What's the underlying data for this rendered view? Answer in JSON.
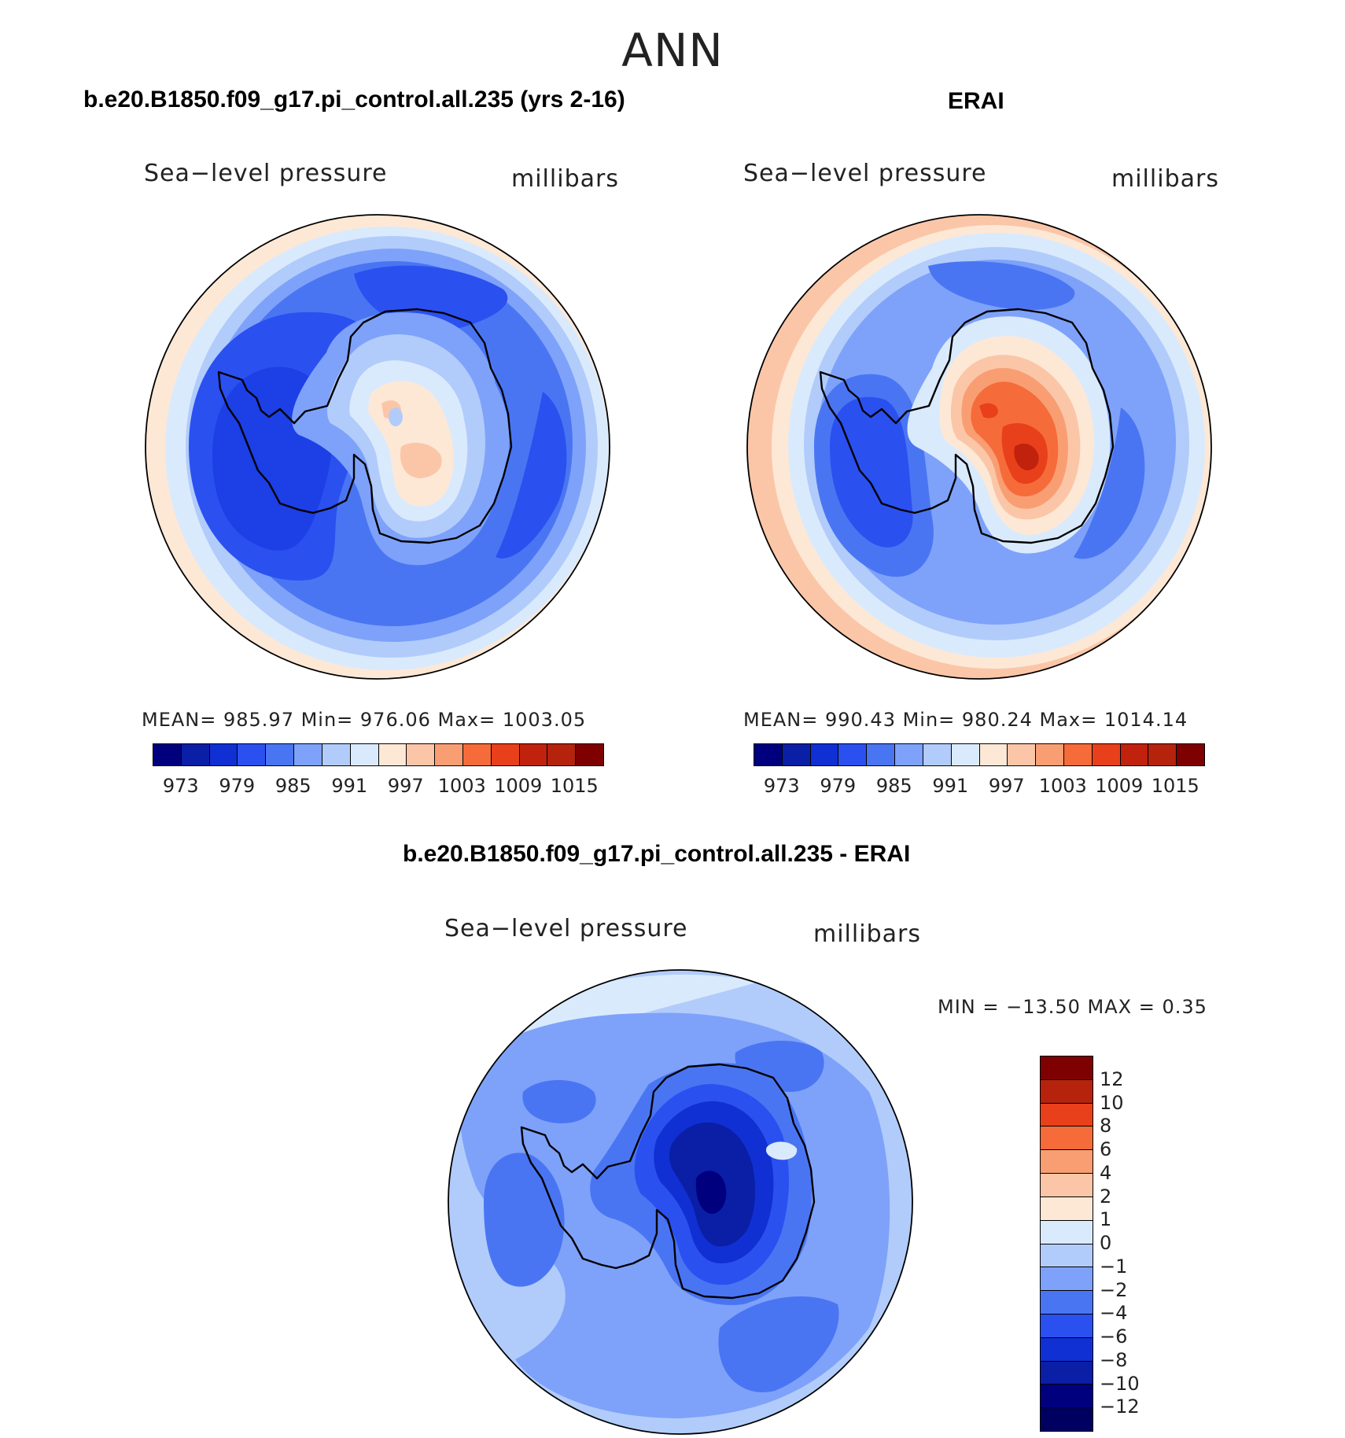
{
  "season": "ANN",
  "panels": {
    "model": {
      "title": "b.e20.B1850.f09_g17.pi_control.all.235 (yrs 2-16)",
      "variable": "Sea−level pressure",
      "units": "millibars",
      "stats": "MEAN=  985.97    Min=  976.06    Max=  1003.05"
    },
    "obs": {
      "title": "ERAI",
      "variable": "Sea−level pressure",
      "units": "millibars",
      "stats": "MEAN=  990.43    Min=  980.24    Max=  1014.14"
    },
    "diff": {
      "title": "b.e20.B1850.f09_g17.pi_control.all.235 - ERAI",
      "variable": "Sea−level pressure",
      "units": "millibars",
      "stats": "MIN  =  −13.50  MAX  =      0.35"
    }
  },
  "colorbar_h": {
    "ticks": [
      "973",
      "979",
      "985",
      "991",
      "997",
      "1003",
      "1009",
      "1015"
    ],
    "colors": [
      "#00007f",
      "#0a1fa5",
      "#1030d3",
      "#2b50f0",
      "#4a75f2",
      "#7ea2fa",
      "#b1ccfb",
      "#daeafd",
      "#fde8d6",
      "#fbc6a8",
      "#f99e73",
      "#f66b3a",
      "#e8401b",
      "#c0220d",
      "#b5230d",
      "#7f0000"
    ]
  },
  "colorbar_v": {
    "labels": [
      "12",
      "10",
      "8",
      "6",
      "4",
      "2",
      "1",
      "0",
      "−1",
      "−2",
      "−4",
      "−6",
      "−8",
      "−10",
      "−12"
    ],
    "colors": [
      "#7f0000",
      "#b5230d",
      "#e8401b",
      "#f66b3a",
      "#f99e73",
      "#fbc6a8",
      "#fde8d6",
      "#daeafd",
      "#b1ccfb",
      "#7ea2fa",
      "#4a75f2",
      "#2b50f0",
      "#1030d3",
      "#0a1fa5",
      "#00007f",
      "#000060"
    ]
  },
  "chart_data": [
    {
      "type": "heatmap",
      "title": "b.e20.B1850.f09_g17.pi_control.all.235 (yrs 2-16)",
      "variable": "Sea-level pressure",
      "units": "millibars",
      "projection": "south polar stereographic",
      "mean": 985.97,
      "min": 976.06,
      "max": 1003.05,
      "contour_levels": [
        970,
        973,
        976,
        979,
        982,
        985,
        988,
        991,
        994,
        997,
        1000,
        1003,
        1006,
        1009,
        1012,
        1015,
        1018
      ]
    },
    {
      "type": "heatmap",
      "title": "ERAI",
      "variable": "Sea-level pressure",
      "units": "millibars",
      "projection": "south polar stereographic",
      "mean": 990.43,
      "min": 980.24,
      "max": 1014.14,
      "contour_levels": [
        970,
        973,
        976,
        979,
        982,
        985,
        988,
        991,
        994,
        997,
        1000,
        1003,
        1006,
        1009,
        1012,
        1015,
        1018
      ]
    },
    {
      "type": "heatmap",
      "title": "b.e20.B1850.f09_g17.pi_control.all.235 - ERAI",
      "variable": "Sea-level pressure",
      "units": "millibars",
      "projection": "south polar stereographic",
      "min": -13.5,
      "max": 0.35,
      "contour_levels": [
        -12,
        -10,
        -8,
        -6,
        -4,
        -2,
        -1,
        0,
        1,
        2,
        4,
        6,
        8,
        10,
        12
      ]
    }
  ]
}
